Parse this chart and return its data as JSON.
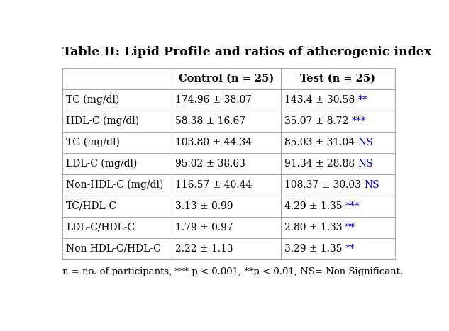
{
  "title": "Table II: Lipid Profile and ratios of atherogenic index",
  "col_headers": [
    "",
    "Control (n = 25)",
    "Test (n = 25)"
  ],
  "rows": [
    [
      "TC (mg/dl)",
      "174.96 ± 38.07",
      "143.4 ± 30.58",
      "**"
    ],
    [
      "HDL-C (mg/dl)",
      "58.38 ± 16.67",
      "35.07 ± 8.72",
      "***"
    ],
    [
      "TG (mg/dl)",
      "103.80 ± 44.34",
      "85.03 ± 31.04",
      "NS"
    ],
    [
      "LDL-C (mg/dl)",
      "95.02 ± 38.63",
      "91.34 ± 28.88",
      "NS"
    ],
    [
      "Non-HDL-C (mg/dl)",
      "116.57 ± 40.44",
      "108.37 ± 30.03",
      "NS"
    ],
    [
      "TC/HDL-C",
      "3.13 ± 0.99",
      "4.29 ± 1.35",
      "***"
    ],
    [
      "LDL-C/HDL-C",
      "1.79 ± 0.97",
      "2.80 ± 1.33",
      "**"
    ],
    [
      "Non HDL-C/HDL-C",
      "2.22 ± 1.13",
      "3.29 ± 1.35",
      "**"
    ]
  ],
  "footnote": "n = no. of participants, *** p < 0.001, **p < 0.01, NS= Non Significant.",
  "bg_color": "#ffffff",
  "title_color": "#000000",
  "header_color": "#000000",
  "cell_color": "#000000",
  "sig_color": "#0000bb",
  "table_edge_color": "#aaaaaa",
  "title_fontsize": 12.5,
  "header_fontsize": 10.5,
  "cell_fontsize": 10,
  "footnote_fontsize": 9.5
}
